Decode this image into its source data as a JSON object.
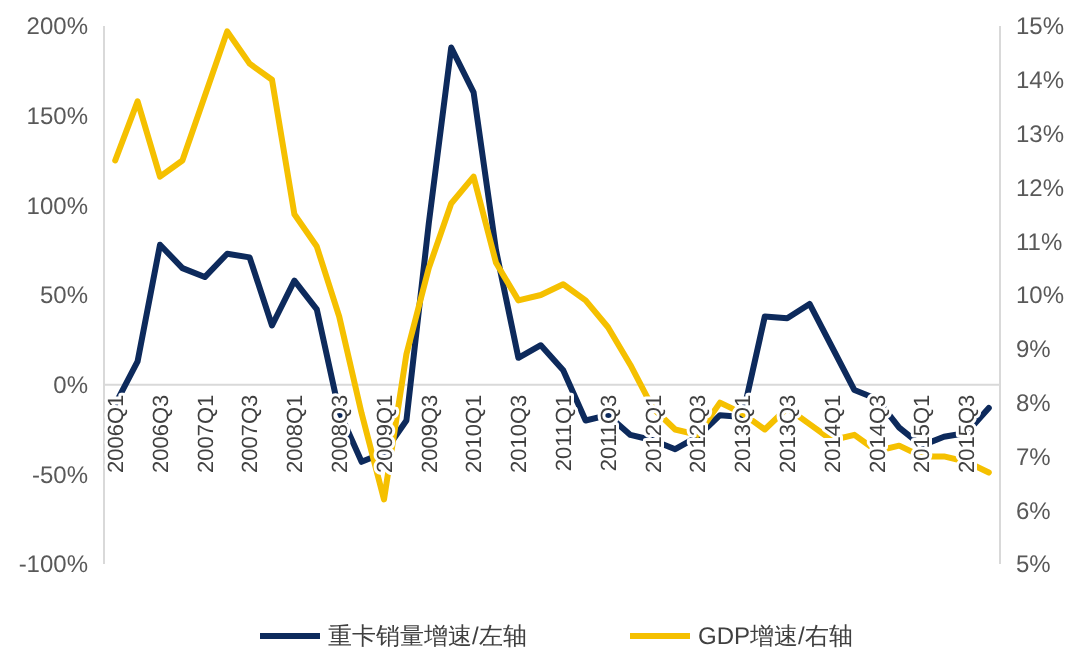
{
  "chart_data": {
    "type": "line",
    "categories": [
      "2006Q1",
      null,
      "2006Q3",
      null,
      "2007Q1",
      null,
      "2007Q3",
      null,
      "2008Q1",
      null,
      "2008Q3",
      null,
      "2009Q1",
      null,
      "2009Q3",
      null,
      "2010Q1",
      null,
      "2010Q3",
      null,
      "2011Q1",
      null,
      "2011Q3",
      null,
      "2012Q1",
      null,
      "2012Q3",
      null,
      "2013Q1",
      null,
      "2013Q3",
      null,
      "2014Q1",
      null,
      "2014Q3",
      null,
      "2015Q1",
      null,
      "2015Q3",
      null
    ],
    "series": [
      {
        "name": "重卡销量增速/左轴",
        "color": "#0d2a5c",
        "values": [
          -11,
          13,
          78,
          65,
          60,
          73,
          71,
          33,
          58,
          42,
          -15,
          -43,
          -38,
          -20,
          90,
          188,
          163,
          75,
          15,
          22,
          8,
          -20,
          -17,
          -28,
          -31,
          -36,
          -29,
          -17,
          -18,
          38,
          37,
          45,
          21,
          -3,
          -8,
          -24,
          -34,
          -29,
          -27,
          -13
        ]
      },
      {
        "name": "GDP增速/右轴",
        "color": "#f5c000",
        "axis": "y2",
        "values": [
          12.5,
          13.6,
          12.2,
          12.5,
          13.7,
          14.9,
          14.3,
          14.0,
          11.5,
          10.9,
          9.6,
          7.8,
          6.2,
          8.9,
          10.5,
          11.7,
          12.2,
          10.6,
          9.9,
          10.0,
          10.2,
          9.9,
          9.4,
          8.7,
          7.9,
          7.5,
          7.4,
          8.0,
          7.8,
          7.5,
          7.9,
          7.6,
          7.3,
          7.4,
          7.1,
          7.2,
          7.0,
          7.0,
          6.9,
          6.7
        ]
      }
    ],
    "ylim": [
      -100,
      200
    ],
    "yticks": [
      {
        "value": -100,
        "label": "-100%"
      },
      {
        "value": -50,
        "label": "-50%"
      },
      {
        "value": 0,
        "label": "0%"
      },
      {
        "value": 50,
        "label": "50%"
      },
      {
        "value": 100,
        "label": "100%"
      },
      {
        "value": 150,
        "label": "150%"
      },
      {
        "value": 200,
        "label": "200%"
      }
    ],
    "y2lim": [
      5,
      15
    ],
    "y2ticks": [
      {
        "value": 5,
        "label": "5%"
      },
      {
        "value": 6,
        "label": "6%"
      },
      {
        "value": 7,
        "label": "7%"
      },
      {
        "value": 8,
        "label": "8%"
      },
      {
        "value": 9,
        "label": "9%"
      },
      {
        "value": 10,
        "label": "10%"
      },
      {
        "value": 11,
        "label": "11%"
      },
      {
        "value": 12,
        "label": "12%"
      },
      {
        "value": 13,
        "label": "13%"
      },
      {
        "value": 14,
        "label": "14%"
      },
      {
        "value": 15,
        "label": "15%"
      }
    ],
    "legend": "bottom",
    "grid": false,
    "marker": "none",
    "line_style": "solid"
  }
}
